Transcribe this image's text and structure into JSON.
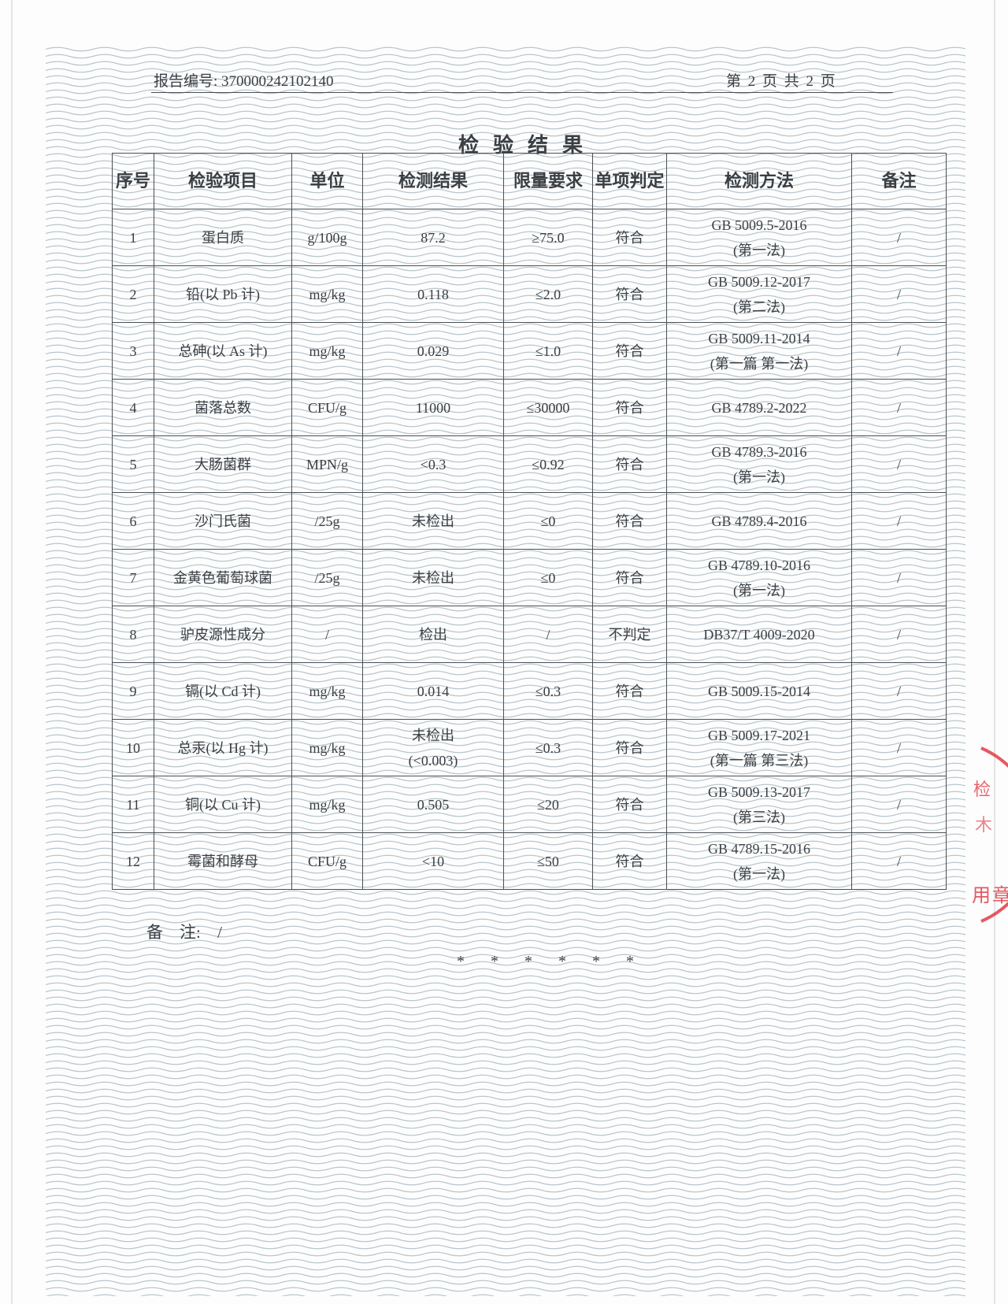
{
  "header": {
    "report_no": "报告编号: 370000242102140",
    "page_info": "第 2 页 共 2 页"
  },
  "title": "检验结果",
  "table": {
    "columns": [
      "序号",
      "检验项目",
      "单位",
      "检测结果",
      "限量要求",
      "单项判定",
      "检测方法",
      "备注"
    ],
    "rows": [
      {
        "no": "1",
        "item": "蛋白质",
        "unit": "g/100g",
        "result": "87.2",
        "limit": "≥75.0",
        "verdict": "符合",
        "method": "GB 5009.5-2016",
        "method2": "(第一法)",
        "remark": "/"
      },
      {
        "no": "2",
        "item": "铅(以 Pb 计)",
        "unit": "mg/kg",
        "result": "0.118",
        "limit": "≤2.0",
        "verdict": "符合",
        "method": "GB 5009.12-2017",
        "method2": "(第二法)",
        "remark": "/"
      },
      {
        "no": "3",
        "item": "总砷(以 As 计)",
        "unit": "mg/kg",
        "result": "0.029",
        "limit": "≤1.0",
        "verdict": "符合",
        "method": "GB 5009.11-2014",
        "method2": "(第一篇 第一法)",
        "remark": "/"
      },
      {
        "no": "4",
        "item": "菌落总数",
        "unit": "CFU/g",
        "result": "11000",
        "limit": "≤30000",
        "verdict": "符合",
        "method": "GB 4789.2-2022",
        "method2": "",
        "remark": "/"
      },
      {
        "no": "5",
        "item": "大肠菌群",
        "unit": "MPN/g",
        "result": "<0.3",
        "limit": "≤0.92",
        "verdict": "符合",
        "method": "GB 4789.3-2016",
        "method2": "(第一法)",
        "remark": "/"
      },
      {
        "no": "6",
        "item": "沙门氏菌",
        "unit": "/25g",
        "result": "未检出",
        "limit": "≤0",
        "verdict": "符合",
        "method": "GB 4789.4-2016",
        "method2": "",
        "remark": "/"
      },
      {
        "no": "7",
        "item": "金黄色葡萄球菌",
        "unit": "/25g",
        "result": "未检出",
        "limit": "≤0",
        "verdict": "符合",
        "method": "GB 4789.10-2016",
        "method2": "(第一法)",
        "remark": "/"
      },
      {
        "no": "8",
        "item": "驴皮源性成分",
        "unit": "/",
        "result": "检出",
        "limit": "/",
        "verdict": "不判定",
        "method": "DB37/T 4009-2020",
        "method2": "",
        "remark": "/"
      },
      {
        "no": "9",
        "item": "镉(以 Cd 计)",
        "unit": "mg/kg",
        "result": "0.014",
        "limit": "≤0.3",
        "verdict": "符合",
        "method": "GB 5009.15-2014",
        "method2": "",
        "remark": "/"
      },
      {
        "no": "10",
        "item": "总汞(以 Hg 计)",
        "unit": "mg/kg",
        "result": "未检出",
        "result2": "(<0.003)",
        "limit": "≤0.3",
        "verdict": "符合",
        "method": "GB 5009.17-2021",
        "method2": "(第一篇 第三法)",
        "remark": "/"
      },
      {
        "no": "11",
        "item": "铜(以 Cu 计)",
        "unit": "mg/kg",
        "result": "0.505",
        "limit": "≤20",
        "verdict": "符合",
        "method": "GB 5009.13-2017",
        "method2": "(第三法)",
        "remark": "/"
      },
      {
        "no": "12",
        "item": "霉菌和酵母",
        "unit": "CFU/g",
        "result": "<10",
        "limit": "≤50",
        "verdict": "符合",
        "method": "GB 4789.15-2016",
        "method2": "(第一法)",
        "remark": "/"
      }
    ]
  },
  "notes": {
    "label": "备　注:",
    "value": "/"
  },
  "end_marks": "* * * * * *",
  "stamp": {
    "text": "用章",
    "color": "#e0303a"
  },
  "colors": {
    "background_lines": "#b9c6cc",
    "ink": "#3a3f44"
  }
}
